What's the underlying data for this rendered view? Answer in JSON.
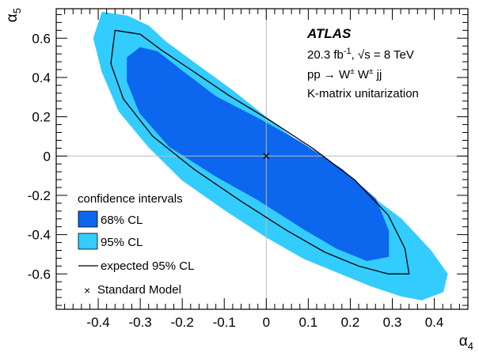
{
  "chart_data": {
    "type": "contour",
    "xlabel": "α",
    "xlabel_sub": "4",
    "ylabel": "α",
    "ylabel_sub": "5",
    "xlim": [
      -0.5,
      0.48
    ],
    "ylim": [
      -0.78,
      0.75
    ],
    "xticks": [
      -0.4,
      -0.3,
      -0.2,
      -0.1,
      0,
      0.1,
      0.2,
      0.3,
      0.4
    ],
    "xtick_labels": [
      "-0.4",
      "-0.3",
      "-0.2",
      "-0.1",
      "0",
      "0.1",
      "0.2",
      "0.3",
      "0.4"
    ],
    "yticks": [
      -0.6,
      -0.4,
      -0.2,
      0,
      0.2,
      0.4,
      0.6
    ],
    "ytick_labels": [
      "-0.6",
      "-0.4",
      "-0.2",
      "0",
      "0.2",
      "0.4",
      "0.6"
    ],
    "reference_lines": {
      "x": 0,
      "y": 0
    },
    "colors": {
      "cl95": "#33ccff",
      "cl68": "#0d66ee",
      "expected": "#000000",
      "reference": "#bbbbbb"
    },
    "series": [
      {
        "name": "95% CL",
        "style": "filled",
        "polygon": [
          [
            -0.39,
            0.73
          ],
          [
            -0.33,
            0.71
          ],
          [
            -0.28,
            0.66
          ],
          [
            -0.24,
            0.58
          ],
          [
            -0.17,
            0.47
          ],
          [
            -0.08,
            0.33
          ],
          [
            0.02,
            0.16
          ],
          [
            0.12,
            0.0
          ],
          [
            0.22,
            -0.16
          ],
          [
            0.32,
            -0.32
          ],
          [
            0.39,
            -0.48
          ],
          [
            0.43,
            -0.6
          ],
          [
            0.42,
            -0.69
          ],
          [
            0.37,
            -0.73
          ],
          [
            0.32,
            -0.71
          ],
          [
            0.25,
            -0.66
          ],
          [
            0.17,
            -0.59
          ],
          [
            0.09,
            -0.52
          ],
          [
            0.0,
            -0.41
          ],
          [
            -0.1,
            -0.27
          ],
          [
            -0.2,
            -0.12
          ],
          [
            -0.28,
            0.05
          ],
          [
            -0.35,
            0.23
          ],
          [
            -0.39,
            0.43
          ],
          [
            -0.41,
            0.6
          ]
        ]
      },
      {
        "name": "68% CL",
        "style": "filled",
        "polygon": [
          [
            -0.33,
            0.5
          ],
          [
            -0.3,
            0.55
          ],
          [
            -0.26,
            0.53
          ],
          [
            -0.2,
            0.43
          ],
          [
            -0.12,
            0.3
          ],
          [
            -0.02,
            0.19
          ],
          [
            0.08,
            0.07
          ],
          [
            0.18,
            -0.07
          ],
          [
            0.26,
            -0.22
          ],
          [
            0.29,
            -0.38
          ],
          [
            0.29,
            -0.51
          ],
          [
            0.24,
            -0.53
          ],
          [
            0.17,
            -0.47
          ],
          [
            0.09,
            -0.37
          ],
          [
            -0.02,
            -0.22
          ],
          [
            -0.12,
            -0.1
          ],
          [
            -0.23,
            0.05
          ],
          [
            -0.3,
            0.22
          ],
          [
            -0.33,
            0.38
          ]
        ]
      },
      {
        "name": "expected 95% CL",
        "style": "line",
        "polygon": [
          [
            -0.36,
            0.64
          ],
          [
            -0.3,
            0.62
          ],
          [
            -0.25,
            0.54
          ],
          [
            -0.18,
            0.44
          ],
          [
            -0.09,
            0.31
          ],
          [
            0.01,
            0.18
          ],
          [
            0.11,
            0.04
          ],
          [
            0.21,
            -0.12
          ],
          [
            0.29,
            -0.3
          ],
          [
            0.33,
            -0.47
          ],
          [
            0.34,
            -0.6
          ],
          [
            0.29,
            -0.6
          ],
          [
            0.22,
            -0.56
          ],
          [
            0.14,
            -0.49
          ],
          [
            0.05,
            -0.38
          ],
          [
            -0.06,
            -0.23
          ],
          [
            -0.17,
            -0.07
          ],
          [
            -0.27,
            0.1
          ],
          [
            -0.34,
            0.29
          ],
          [
            -0.37,
            0.47
          ]
        ]
      },
      {
        "name": "Standard Model",
        "style": "marker",
        "x": [
          0
        ],
        "y": [
          0
        ]
      }
    ],
    "annotations": {
      "experiment": "ATLAS",
      "luminosity": "20.3 fb",
      "luminosity_sup": "-1",
      "energy": ", √s = 8 TeV",
      "process": "pp → W",
      "process_sup1": "±",
      "process_mid": " W",
      "process_sup2": "±",
      "process_end": " jj",
      "method": "K-matrix unitarization"
    },
    "legend": {
      "title": "confidence intervals",
      "entries": [
        "68% CL",
        "95% CL",
        "expected 95% CL",
        "Standard Model"
      ],
      "placement": "bottom-left"
    },
    "grid": false
  }
}
